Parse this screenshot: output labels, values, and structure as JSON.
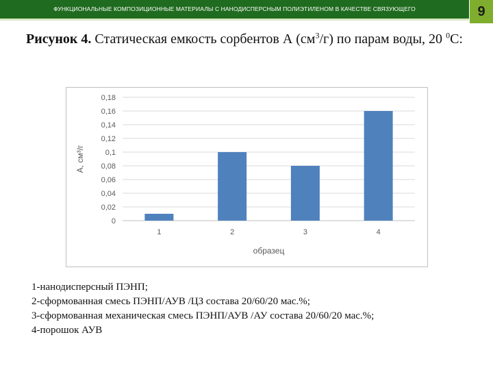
{
  "header": {
    "title": "ФУНКЦИОНАЛЬНЫЕ КОМПОЗИЦИОННЫЕ МАТЕРИАЛЫ С НАНОДИСПЕРСНЫМ ПОЛИЭТИЛЕНОМ В КАЧЕСТВЕ СВЯЗУЮЩЕГО",
    "page_number": "9"
  },
  "figure": {
    "label": "Рисунок 4.",
    "text_1": " Статическая емкость сорбентов А (см",
    "sup_1": "3",
    "text_2": "/г) по парам воды, 20 ",
    "sup_2": "0",
    "text_3": "С:"
  },
  "legend_lines": [
    "1-нанодисперсный ПЭНП;",
    "2-сформованная смесь ПЭНП/АУВ /ЦЗ состава 20/60/20  мас.%;",
    "3-сформованная механическая смесь ПЭНП/АУВ /АУ состава 20/60/20 мас.%;",
    "4-порошок АУВ"
  ],
  "colors": {
    "header_bg": "#1f6b1f",
    "page_number_bg": "#7fae2e",
    "bar": "#4f81bd",
    "axis_text": "#595959",
    "grid": "#d9d9d9"
  },
  "chart_data": {
    "type": "bar",
    "categories": [
      "1",
      "2",
      "3",
      "4"
    ],
    "values": [
      0.01,
      0.1,
      0.08,
      0.16
    ],
    "title": "",
    "xlabel": "образец",
    "ylabel": "А, см³/г",
    "ylim": [
      0,
      0.18
    ],
    "y_ticks": [
      0,
      0.02,
      0.04,
      0.06,
      0.08,
      0.1,
      0.12,
      0.14,
      0.16,
      0.18
    ],
    "y_tick_labels": [
      "0",
      "0,02",
      "0,04",
      "0,06",
      "0,08",
      "0,1",
      "0,12",
      "0,14",
      "0,16",
      "0,18"
    ],
    "grid": true,
    "legend": "none"
  }
}
